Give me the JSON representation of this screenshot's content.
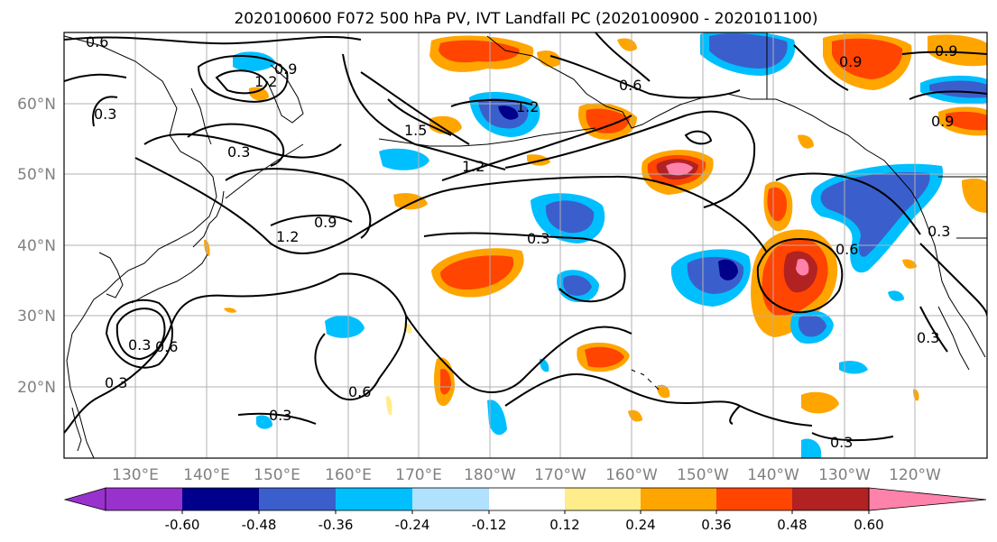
{
  "title": "2020100600 F072 500 hPa PV, IVT Landfall PC (2020100900 - 2020101100)",
  "lat_labels": [
    "20°N",
    "30°N",
    "40°N",
    "50°N",
    "60°N"
  ],
  "lon_labels": [
    "130°E",
    "140°E",
    "150°E",
    "160°E",
    "170°E",
    "180°W",
    "170°W",
    "160°W",
    "150°W",
    "140°W",
    "130°W",
    "120°W"
  ],
  "contour_labels": {
    "c1": "0.6",
    "c2": "1.2",
    "c3": "0.9",
    "c4": "0.3",
    "c5": "0.3",
    "c6": "1.5",
    "c7": "1.2",
    "c8": "1.2",
    "c9": "1.2",
    "c10": "0.9",
    "c11": "0.3",
    "c12": "0.6",
    "c13": "0.9",
    "c14": "0.9",
    "c15": "0.9",
    "c16": "0.6",
    "c17": "0.3",
    "c18": "0.6",
    "c19": "0.3",
    "c20": "0.3",
    "c21": "0.3",
    "c22": "0.6",
    "c23": "0.3",
    "c24": "0.3"
  },
  "colorbar": {
    "colors": [
      "#9932cc",
      "#00008b",
      "#3a5fcd",
      "#00bfff",
      "#b0e2ff",
      "#ffffff",
      "#ffec8b",
      "#ffa500",
      "#ff4500",
      "#b22222",
      "#ff82ab"
    ],
    "tick_labels": [
      "-0.60",
      "-0.48",
      "-0.36",
      "-0.24",
      "-0.12",
      "0.12",
      "0.24",
      "0.36",
      "0.48",
      "0.60"
    ]
  },
  "colors": {
    "coast": "#000000",
    "grid": "#b0b0b0",
    "axis_label": "#808080"
  }
}
